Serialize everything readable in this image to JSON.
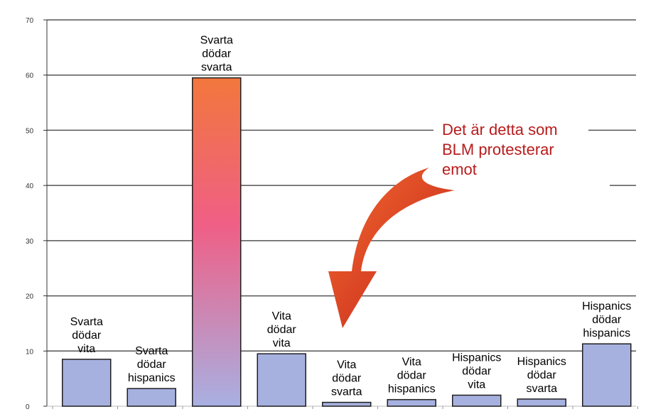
{
  "chart_data": {
    "type": "bar",
    "title": "",
    "xlabel": "",
    "ylabel": "",
    "ylim": [
      0,
      70
    ],
    "yticks": [
      0,
      10,
      20,
      30,
      40,
      50,
      60,
      70
    ],
    "grid": true,
    "categories": [
      [
        "Svarta",
        "dödar",
        "vita"
      ],
      [
        "Svarta",
        "dödar",
        "hispanics"
      ],
      [
        "Svarta",
        "dödar",
        "svarta"
      ],
      [
        "Vita",
        "dödar",
        "vita"
      ],
      [
        "Vita",
        "dödar",
        "svarta"
      ],
      [
        "Vita",
        "dödar",
        "hispanics"
      ],
      [
        "Hispanics",
        "dödar",
        "vita"
      ],
      [
        "Hispanics",
        "dödar",
        "svarta"
      ],
      [
        "Hispanics",
        "dödar",
        "hispanics"
      ]
    ],
    "values": [
      8.5,
      3.2,
      59.5,
      9.5,
      0.7,
      1.2,
      2.0,
      1.3,
      11.3
    ],
    "highlight_index": 2,
    "colors": {
      "bar_fill": "#a7b1e0",
      "bar_stroke": "#1f1f1f",
      "highlight_top": "#f2773c",
      "highlight_mid": "#ef5f86",
      "highlight_bottom": "#a8b0e2",
      "gridline": "#555555",
      "annotation": "#b81c1c",
      "arrow_light": "#f46a2e",
      "arrow_dark": "#c0211b"
    },
    "annotation": {
      "lines": [
        "Det är detta som",
        "BLM protesterar",
        "emot"
      ],
      "target_index": 4
    }
  }
}
